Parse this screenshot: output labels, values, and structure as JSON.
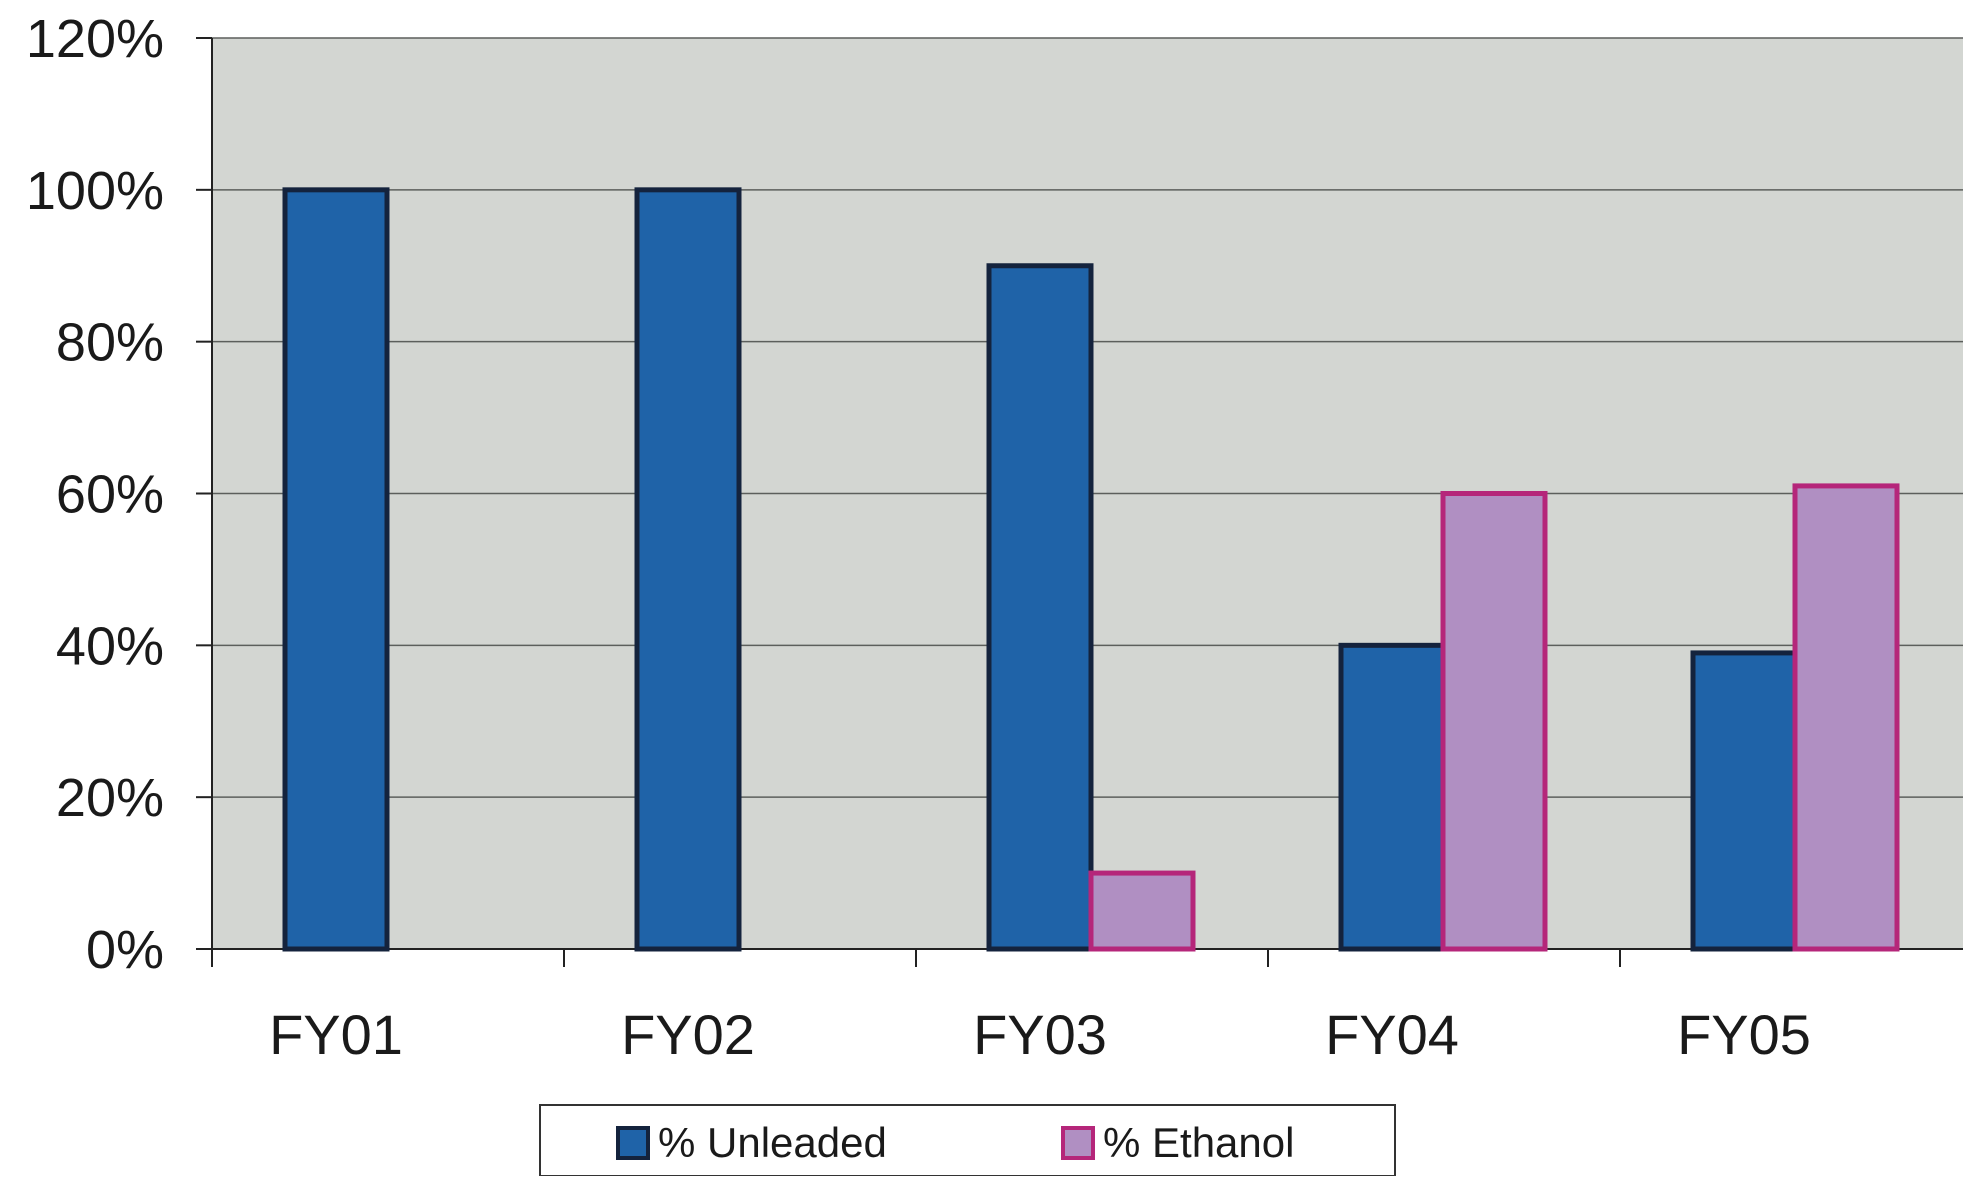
{
  "chart_data": {
    "type": "bar",
    "title": "",
    "xlabel": "",
    "ylabel": "",
    "categories": [
      "FY01",
      "FY02",
      "FY03",
      "FY04",
      "FY05"
    ],
    "series": [
      {
        "name": "% Unleaded",
        "values": [
          100,
          100,
          90,
          40,
          39
        ],
        "color": "#1f63a8",
        "border": "#14233d"
      },
      {
        "name": "% Ethanol",
        "values": [
          null,
          null,
          10,
          60,
          61
        ],
        "color": "#b08fc2",
        "border": "#b5267a"
      }
    ],
    "ylim": [
      0,
      120
    ],
    "yticks": [
      0,
      20,
      40,
      60,
      80,
      100,
      120
    ],
    "ytick_labels": [
      "0%",
      "20%",
      "40%",
      "60%",
      "80%",
      "100%",
      "120%"
    ],
    "grid": true,
    "plot_background": "#d3d6d2",
    "legend_position": "bottom"
  }
}
